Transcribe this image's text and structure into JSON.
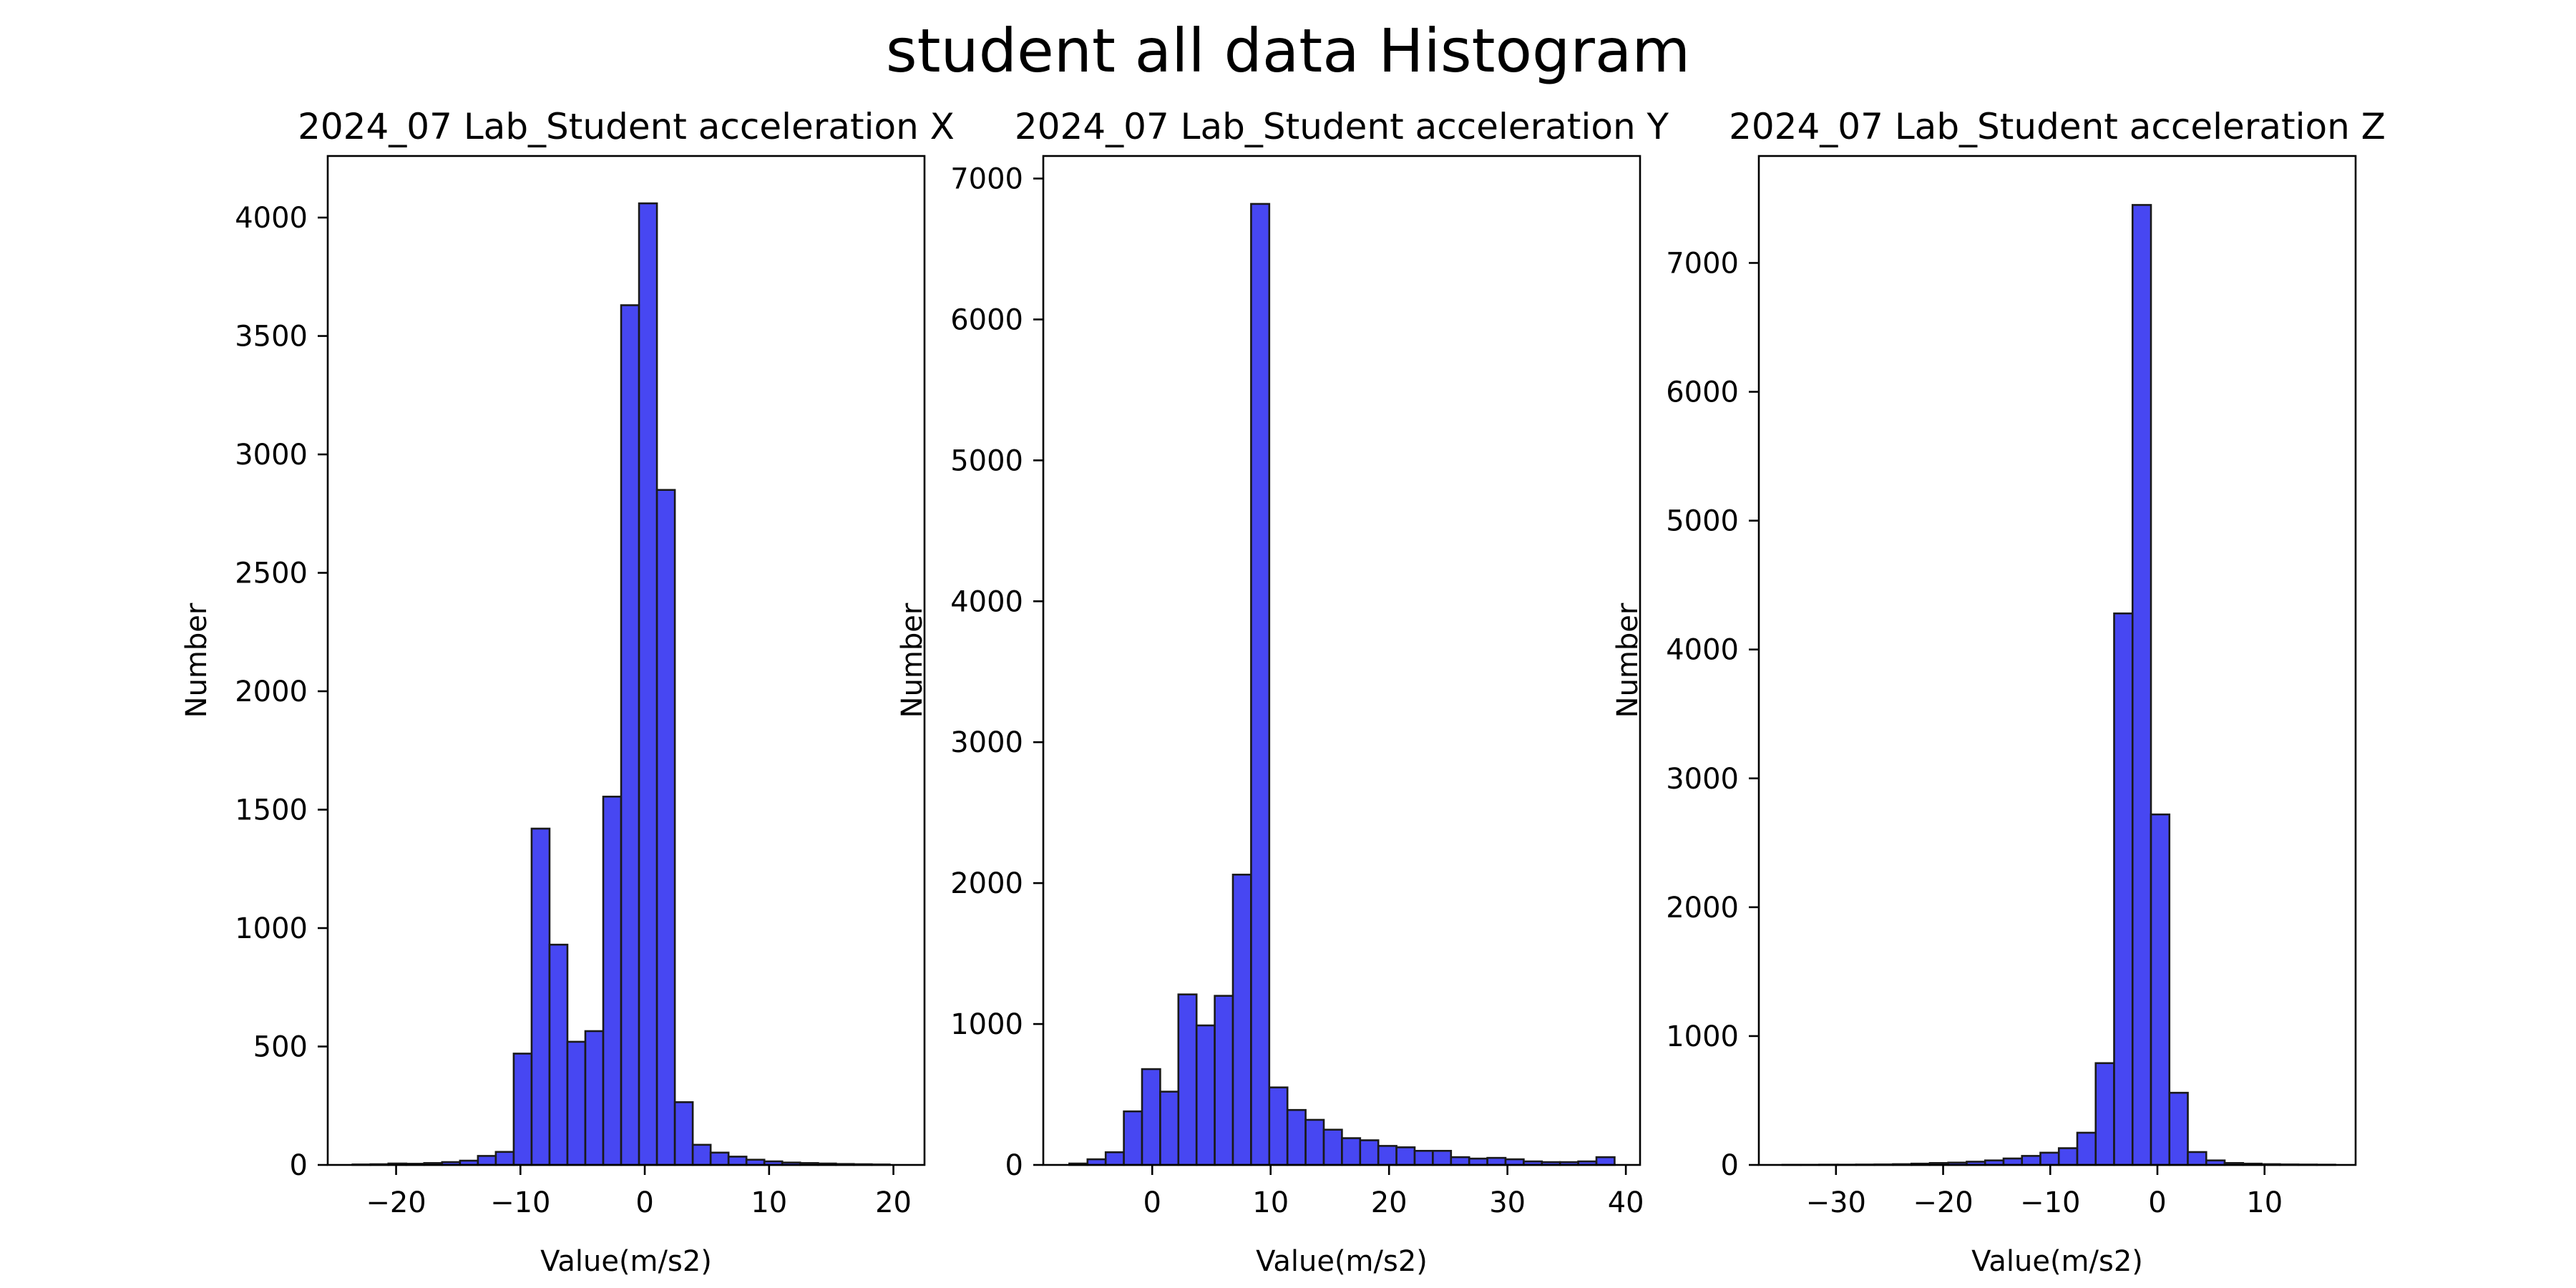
{
  "figure": {
    "suptitle": "student all data Histogram"
  },
  "chart_data": [
    {
      "type": "bar",
      "title": "2024_07 Lab_Student acceleration X",
      "xlabel": "Value(m/s2)",
      "ylabel": "Number",
      "xlim": [
        -25.5,
        22.5
      ],
      "ylim": [
        0,
        4260
      ],
      "xticks": [
        -20,
        -10,
        0,
        10,
        20
      ],
      "xtick_labels": [
        "−20",
        "−10",
        "0",
        "10",
        "20"
      ],
      "yticks": [
        0,
        500,
        1000,
        1500,
        2000,
        2500,
        3000,
        3500,
        4000
      ],
      "bin_start": -23.5,
      "bin_width": 1.44,
      "values": [
        2,
        3,
        6,
        5,
        8,
        12,
        18,
        38,
        55,
        470,
        1420,
        930,
        520,
        565,
        1555,
        3630,
        4060,
        2850,
        265,
        85,
        52,
        35,
        22,
        15,
        10,
        8,
        6,
        4,
        3,
        2
      ],
      "bar_color": "#4747f2",
      "edge_color": "#1a1a1a",
      "grid": false
    },
    {
      "type": "bar",
      "title": "2024_07 Lab_Student acceleration Y",
      "xlabel": "Value(m/s2)",
      "ylabel": "Number",
      "xlim": [
        -9.2,
        41.2
      ],
      "ylim": [
        0,
        7160
      ],
      "xticks": [
        0,
        10,
        20,
        30,
        40
      ],
      "xtick_labels": [
        "0",
        "10",
        "20",
        "30",
        "40"
      ],
      "yticks": [
        0,
        1000,
        2000,
        3000,
        4000,
        5000,
        6000,
        7000
      ],
      "bin_start": -7,
      "bin_width": 1.535,
      "values": [
        10,
        40,
        90,
        380,
        680,
        520,
        1210,
        990,
        1200,
        2060,
        6820,
        550,
        390,
        320,
        250,
        190,
        175,
        135,
        125,
        100,
        100,
        55,
        45,
        50,
        40,
        25,
        20,
        20,
        25,
        55
      ],
      "bar_color": "#4747f2",
      "edge_color": "#1a1a1a",
      "grid": false
    },
    {
      "type": "bar",
      "title": "2024_07 Lab_Student acceleration Z",
      "xlabel": "Value(m/s2)",
      "ylabel": "Number",
      "xlim": [
        -37.2,
        18.5
      ],
      "ylim": [
        0,
        7830
      ],
      "xticks": [
        -30,
        -20,
        -10,
        0,
        10
      ],
      "xtick_labels": [
        "−30",
        "−20",
        "−10",
        "0",
        "10"
      ],
      "yticks": [
        0,
        1000,
        2000,
        3000,
        4000,
        5000,
        6000,
        7000
      ],
      "bin_start": -35,
      "bin_width": 1.72,
      "values": [
        1,
        1,
        2,
        2,
        3,
        4,
        6,
        10,
        15,
        18,
        25,
        35,
        50,
        70,
        95,
        130,
        250,
        790,
        4280,
        7450,
        2720,
        560,
        100,
        35,
        15,
        10,
        6,
        4,
        3,
        2
      ],
      "bar_color": "#4747f2",
      "edge_color": "#1a1a1a",
      "grid": false
    }
  ]
}
